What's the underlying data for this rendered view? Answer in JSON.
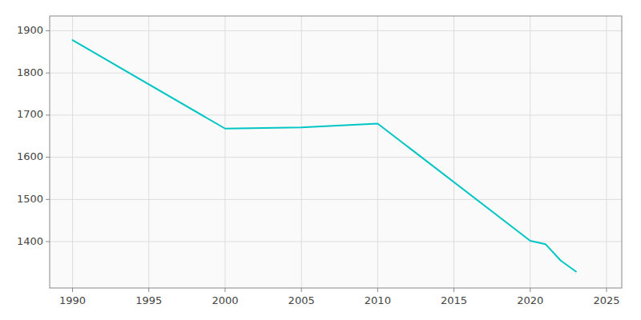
{
  "chart_data": {
    "type": "line",
    "x": [
      1990,
      2000,
      2005,
      2010,
      2020,
      2021,
      2022,
      2023
    ],
    "values": [
      1878,
      1668,
      1671,
      1680,
      1402,
      1394,
      1355,
      1329
    ],
    "color": "#00C5C5",
    "xlim": [
      1988.5,
      2026
    ],
    "ylim": [
      1290,
      1935
    ],
    "xticks": [
      1990,
      1995,
      2000,
      2005,
      2010,
      2015,
      2020,
      2025
    ],
    "yticks": [
      1400,
      1500,
      1600,
      1700,
      1800,
      1900
    ],
    "grid": true
  }
}
